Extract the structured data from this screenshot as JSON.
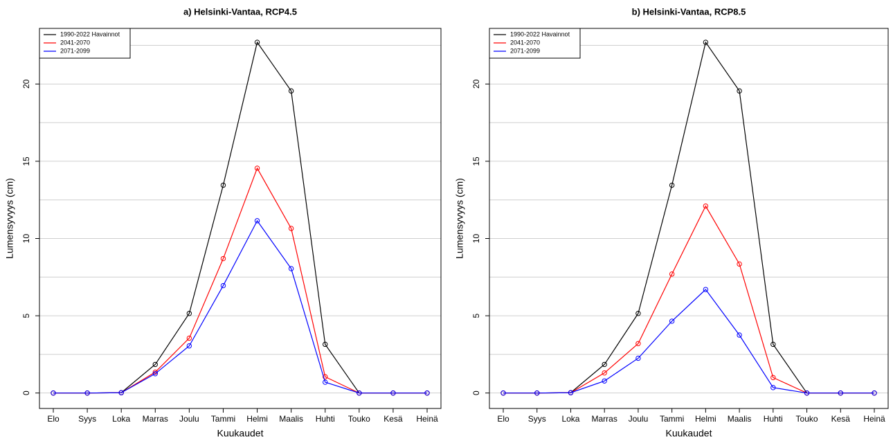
{
  "chart_data": [
    {
      "type": "line",
      "title": "a) Helsinki-Vantaa, RCP4.5",
      "x_label": "Kuukaudet",
      "y_label": "Lumensyvyys (cm)",
      "categories": [
        "Elo",
        "Syys",
        "Loka",
        "Marras",
        "Joulu",
        "Tammi",
        "Helmi",
        "Maalis",
        "Huhti",
        "Touko",
        "Kesä",
        "Heinä"
      ],
      "series": [
        {
          "name": "1990-2022 Havainnot",
          "color": "#000000",
          "values": [
            0,
            0,
            0.02,
            1.85,
            5.15,
            13.45,
            22.7,
            19.55,
            3.15,
            0,
            0,
            0
          ]
        },
        {
          "name": "2041-2070",
          "color": "#ff0000",
          "values": [
            0,
            0,
            0.02,
            1.35,
            3.55,
            8.7,
            14.55,
            10.65,
            1.05,
            0,
            0,
            0
          ]
        },
        {
          "name": "2071-2099",
          "color": "#0000ff",
          "values": [
            0,
            0,
            0.02,
            1.25,
            3.05,
            6.95,
            11.15,
            8.05,
            0.7,
            0,
            0,
            0
          ]
        }
      ],
      "ylim": [
        -1.0,
        23.6
      ],
      "yticks": [
        0,
        5,
        10,
        15,
        20
      ],
      "grid_yticks": [
        0,
        2.5,
        5,
        7.5,
        10,
        12.5,
        15,
        17.5,
        20,
        22.5
      ],
      "grid": true,
      "legend": "top-left"
    },
    {
      "type": "line",
      "title": "b) Helsinki-Vantaa, RCP8.5",
      "x_label": "Kuukaudet",
      "y_label": "Lumensyvyys (cm)",
      "categories": [
        "Elo",
        "Syys",
        "Loka",
        "Marras",
        "Joulu",
        "Tammi",
        "Helmi",
        "Maalis",
        "Huhti",
        "Touko",
        "Kesä",
        "Heinä"
      ],
      "series": [
        {
          "name": "1990-2022 Havainnot",
          "color": "#000000",
          "values": [
            0,
            0,
            0.02,
            1.85,
            5.15,
            13.45,
            22.7,
            19.55,
            3.15,
            0,
            0,
            0
          ]
        },
        {
          "name": "2041-2070",
          "color": "#ff0000",
          "values": [
            0,
            0,
            0.02,
            1.3,
            3.2,
            7.7,
            12.1,
            8.35,
            1.0,
            0,
            0,
            0
          ]
        },
        {
          "name": "2071-2099",
          "color": "#0000ff",
          "values": [
            0,
            0,
            0.02,
            0.78,
            2.25,
            4.65,
            6.7,
            3.75,
            0.35,
            0,
            0,
            0
          ]
        }
      ],
      "ylim": [
        -1.0,
        23.6
      ],
      "yticks": [
        0,
        5,
        10,
        15,
        20
      ],
      "grid_yticks": [
        0,
        2.5,
        5,
        7.5,
        10,
        12.5,
        15,
        17.5,
        20,
        22.5
      ],
      "grid": true,
      "legend": "top-left"
    }
  ]
}
